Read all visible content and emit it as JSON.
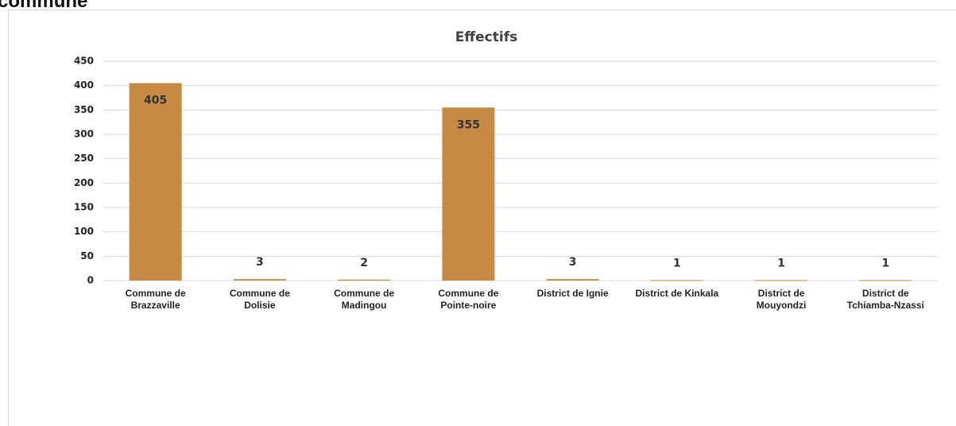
{
  "heading": "commune",
  "chart_data": {
    "type": "bar",
    "title": "Effectifs",
    "categories": [
      "Commune de Brazzaville",
      "Commune de Dolisie",
      "Commune de Madingou",
      "Commune de Pointe-noire",
      "District de Ignie",
      "District de Kinkala",
      "District de Mouyondzi",
      "District de Tchiamba-Nzassi"
    ],
    "values": [
      405,
      3,
      2,
      355,
      3,
      1,
      1,
      1
    ],
    "color": "#c68a45",
    "ylim": [
      0,
      450
    ],
    "yticks": [
      0,
      50,
      100,
      150,
      200,
      250,
      300,
      350,
      400,
      450
    ],
    "grid": true
  }
}
